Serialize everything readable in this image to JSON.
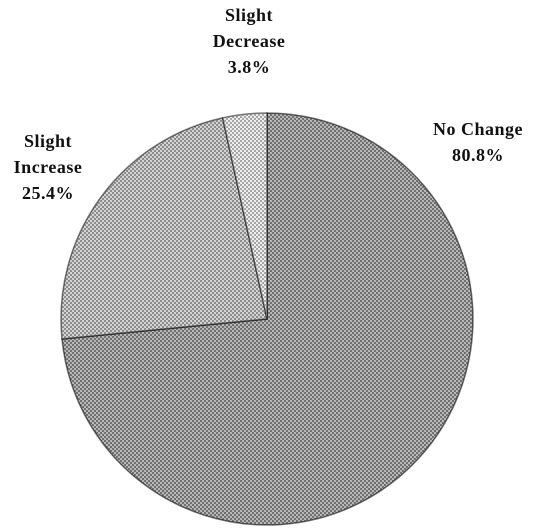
{
  "chart_data": {
    "type": "pie",
    "categories": [
      "No Change",
      "Slight Increase",
      "Slight Decrease"
    ],
    "values": [
      80.8,
      25.4,
      3.8
    ],
    "value_labels": [
      "80.8%",
      "25.4%",
      "3.8%"
    ],
    "colors": [
      "#6e6e6e",
      "#a8a8a8",
      "#dcdcdc"
    ]
  }
}
